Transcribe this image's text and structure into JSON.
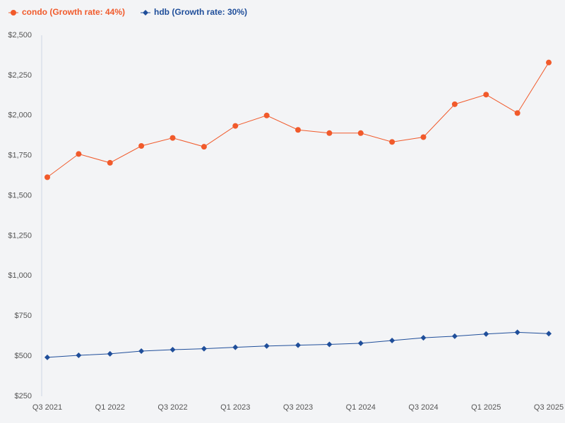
{
  "chart_data": {
    "type": "line",
    "categories": [
      "Q3 2021",
      null,
      "Q1 2022",
      null,
      "Q3 2022",
      null,
      "Q1 2023",
      null,
      "Q3 2023",
      null,
      "Q1 2024",
      null,
      "Q3 2024",
      null,
      "Q1 2025",
      null,
      "Q3 2025"
    ],
    "series": [
      {
        "name": "condo (Growth rate: 44%)",
        "color": "#f15a2b",
        "marker": "circle",
        "values": [
          1615,
          1760,
          1705,
          1810,
          1860,
          1805,
          1935,
          2000,
          1910,
          1890,
          1890,
          1835,
          1865,
          2070,
          2130,
          2015,
          2330
        ]
      },
      {
        "name": "hdb (Growth rate: 30%)",
        "color": "#1f4e9a",
        "marker": "diamond",
        "values": [
          492,
          505,
          514,
          531,
          540,
          546,
          555,
          563,
          568,
          573,
          580,
          597,
          614,
          624,
          638,
          648,
          640
        ]
      }
    ],
    "ylim": [
      250,
      2500
    ],
    "yticks": [
      {
        "value": 250,
        "label": "$250"
      },
      {
        "value": 500,
        "label": "$500"
      },
      {
        "value": 750,
        "label": "$750"
      },
      {
        "value": 1000,
        "label": "$1,000"
      },
      {
        "value": 1250,
        "label": "$1,250"
      },
      {
        "value": 1500,
        "label": "$1,500"
      },
      {
        "value": 1750,
        "label": "$1,750"
      },
      {
        "value": 2000,
        "label": "$2,000"
      },
      {
        "value": 2250,
        "label": "$2,250"
      },
      {
        "value": 2500,
        "label": "$2,500"
      }
    ],
    "grid": false,
    "legend": "top-left"
  }
}
